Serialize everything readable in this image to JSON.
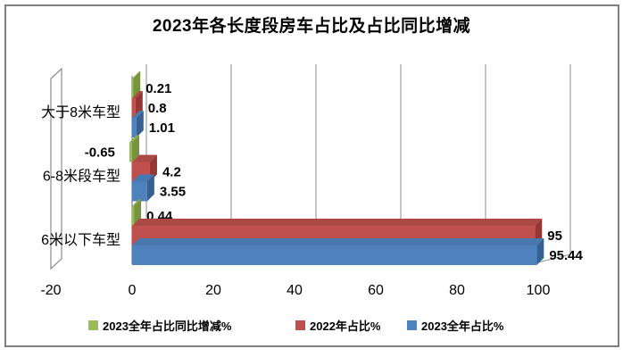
{
  "chart_data": {
    "type": "bar",
    "orientation": "horizontal",
    "title": "2023年各长度段房车占比及占比同比增减",
    "categories": [
      "大于8米车型",
      "6-8米段车型",
      "6米以下车型"
    ],
    "series": [
      {
        "name": "2023全年占比同比增减%",
        "color": "#9BBB59",
        "color_top": "#8CA94F",
        "color_side": "#77933C",
        "values": [
          0.21,
          -0.65,
          0.44
        ],
        "labels": [
          "0.21",
          "-0.65",
          "0.44"
        ]
      },
      {
        "name": "2022年占比%",
        "color": "#C0504D",
        "color_top": "#AC4946",
        "color_side": "#943634",
        "values": [
          0.8,
          4.2,
          95
        ],
        "labels": [
          "0.8",
          "4.2",
          "95"
        ]
      },
      {
        "name": "2023全年占比%",
        "color": "#4F81BD",
        "color_top": "#4878AE",
        "color_side": "#376092",
        "values": [
          1.01,
          3.55,
          95.44
        ],
        "labels": [
          "1.01",
          "3.55",
          "95.44"
        ]
      }
    ],
    "x_ticks": [
      "-20",
      "0",
      "20",
      "40",
      "60",
      "80",
      "100"
    ],
    "xlim": [
      -20,
      100
    ],
    "grid": true,
    "legend_position": "bottom",
    "colors": {
      "gridline": "#A6A6A6",
      "axis_line": "#8C8C8C",
      "frame_border": "#7F7F7F",
      "text": "#000000"
    }
  }
}
